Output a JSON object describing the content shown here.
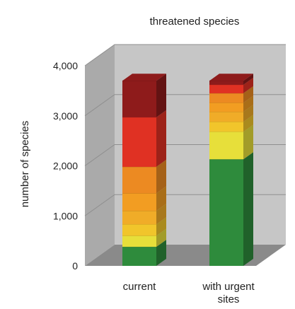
{
  "chart_data": {
    "type": "bar",
    "stacked": true,
    "three_d": true,
    "title": "threatened species",
    "ylabel": "number of species",
    "xlabel": "",
    "ylim": [
      0,
      4000
    ],
    "yticks": [
      0,
      1000,
      2000,
      3000,
      4000
    ],
    "ytick_labels": [
      "0",
      "1,000",
      "2,000",
      "3,000",
      "4,000"
    ],
    "grid": true,
    "legend": "none",
    "categories": [
      "current",
      "with urgent sites"
    ],
    "category_label_lines": [
      [
        "current"
      ],
      [
        "with urgent",
        "sites"
      ]
    ],
    "bars": [
      {
        "category": "current",
        "segments": [
          {
            "from": 0,
            "to": 380,
            "color": "#2e8b3c"
          },
          {
            "from": 380,
            "to": 600,
            "color": "#e7df3a"
          },
          {
            "from": 600,
            "to": 830,
            "color": "#f1c52b"
          },
          {
            "from": 830,
            "to": 1100,
            "color": "#f0ac28"
          },
          {
            "from": 1100,
            "to": 1450,
            "color": "#f29d22"
          },
          {
            "from": 1450,
            "to": 1980,
            "color": "#ec8a22"
          },
          {
            "from": 1980,
            "to": 2970,
            "color": "#e03123"
          },
          {
            "from": 2970,
            "to": 3700,
            "color": "#8e1b1b"
          }
        ]
      },
      {
        "category": "with urgent sites",
        "segments": [
          {
            "from": 0,
            "to": 2130,
            "color": "#2e8b3c"
          },
          {
            "from": 2130,
            "to": 2680,
            "color": "#e7df3a"
          },
          {
            "from": 2680,
            "to": 2880,
            "color": "#f1c52b"
          },
          {
            "from": 2880,
            "to": 3080,
            "color": "#f0ac28"
          },
          {
            "from": 3080,
            "to": 3260,
            "color": "#f29d22"
          },
          {
            "from": 3260,
            "to": 3450,
            "color": "#ec8a22"
          },
          {
            "from": 3450,
            "to": 3620,
            "color": "#e03123"
          },
          {
            "from": 3620,
            "to": 3700,
            "color": "#8e1b1b"
          }
        ]
      }
    ],
    "colors": {
      "back_wall": "#c6c6c6",
      "side_wall": "#aaaaaa",
      "floor": "#8a8a8a",
      "grid": "#8f8f8f"
    }
  }
}
